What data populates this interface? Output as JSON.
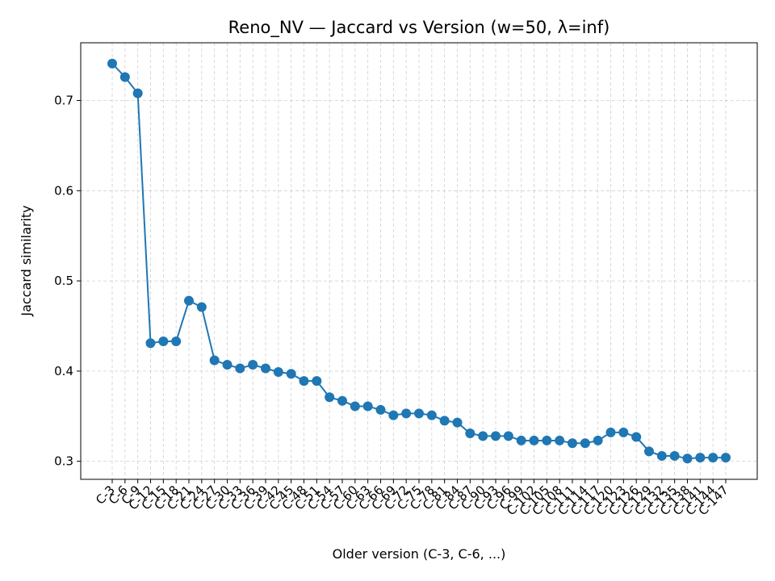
{
  "chart_data": {
    "type": "line",
    "title": "Reno_NV — Jaccard vs Version (w=50, λ=inf)",
    "xlabel": "Older version (C-3, C-6, ...)",
    "ylabel": "Jaccard similarity",
    "ylim": [
      0.28,
      0.764
    ],
    "yticks": [
      0.3,
      0.4,
      0.5,
      0.6,
      0.7
    ],
    "ytick_labels": [
      "0.3",
      "0.4",
      "0.5",
      "0.6",
      "0.7"
    ],
    "grid": true,
    "line_color": "#1f77b4",
    "categories": [
      "C-3",
      "C-6",
      "C-9",
      "C-12",
      "C-15",
      "C-18",
      "C-21",
      "C-24",
      "C-27",
      "C-30",
      "C-33",
      "C-36",
      "C-39",
      "C-42",
      "C-45",
      "C-48",
      "C-51",
      "C-54",
      "C-57",
      "C-60",
      "C-63",
      "C-66",
      "C-69",
      "C-72",
      "C-75",
      "C-78",
      "C-81",
      "C-84",
      "C-87",
      "C-90",
      "C-93",
      "C-96",
      "C-99",
      "C-102",
      "C-105",
      "C-108",
      "C-111",
      "C-114",
      "C-117",
      "C-120",
      "C-123",
      "C-126",
      "C-129",
      "C-132",
      "C-135",
      "C-138",
      "C-141",
      "C-144",
      "C-147"
    ],
    "series": [
      {
        "values": [
          0.741,
          0.726,
          0.708,
          0.431,
          0.433,
          0.433,
          0.478,
          0.471,
          0.412,
          0.407,
          0.403,
          0.407,
          0.403,
          0.399,
          0.397,
          0.389,
          0.389,
          0.371,
          0.367,
          0.361,
          0.361,
          0.357,
          0.351,
          0.353,
          0.353,
          0.351,
          0.345,
          0.343,
          0.331,
          0.328,
          0.328,
          0.328,
          0.323,
          0.323,
          0.323,
          0.323,
          0.32,
          0.32,
          0.323,
          0.332,
          0.332,
          0.327,
          0.311,
          0.306,
          0.306,
          0.303,
          0.304,
          0.304,
          0.304
        ]
      }
    ]
  }
}
